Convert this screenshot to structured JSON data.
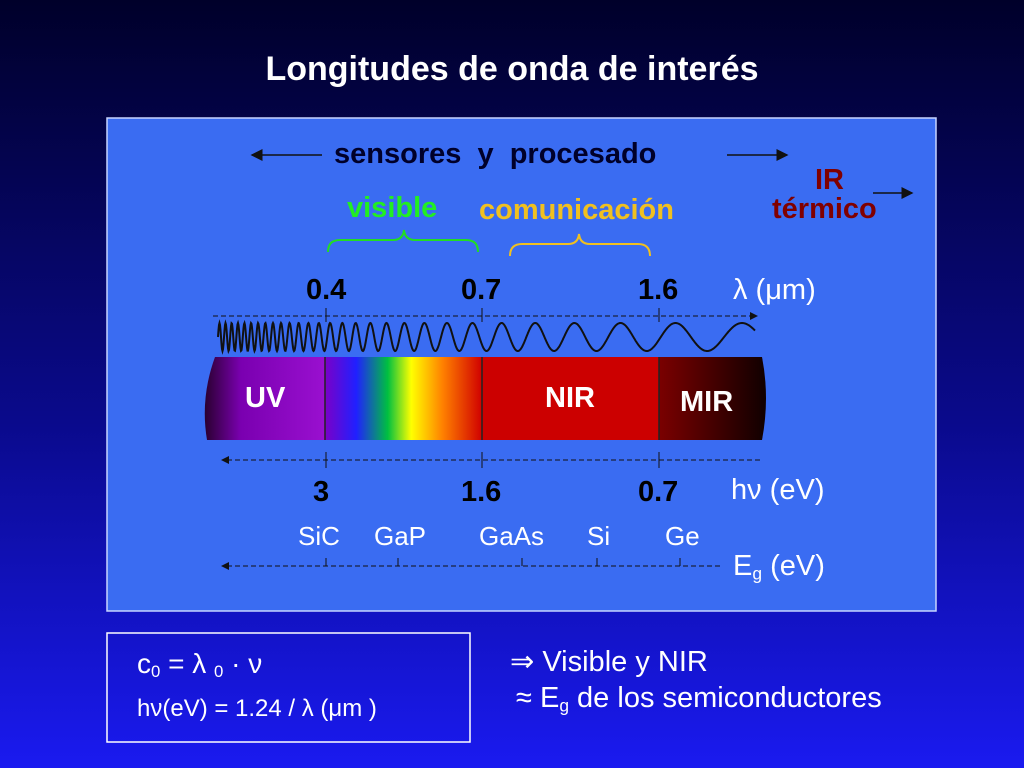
{
  "header": {
    "title": "Longitudes de onda de interés"
  },
  "panel": {
    "sensors": "sensores  y  procesado",
    "visible": "visible",
    "communication": "comunicación",
    "ir": [
      "IR",
      "térmico"
    ],
    "wavelength": {
      "ticks": [
        "0.4",
        "0.7",
        "1.6"
      ],
      "unit": "λ (μm)"
    },
    "bands": [
      "UV",
      "NIR",
      "MIR"
    ],
    "energy": {
      "ticks": [
        "3",
        "1.6",
        "0.7"
      ],
      "unit": "hν (eV)"
    },
    "materials": [
      "SiC",
      "GaP",
      "GaAs",
      "Si",
      "Ge"
    ],
    "bandgap": {
      "symbol": "E",
      "subscript": "g",
      "unit": " (eV)"
    }
  },
  "formulas": {
    "speed": [
      "c",
      "0",
      " = λ ",
      "0",
      " · ν"
    ],
    "energy": "hν(eV) = 1.24 / λ (μm )"
  },
  "conclusions": {
    "first": "⇒ Visible y NIR",
    "second": [
      "≈ E",
      "g",
      " de los semiconductores"
    ]
  }
}
